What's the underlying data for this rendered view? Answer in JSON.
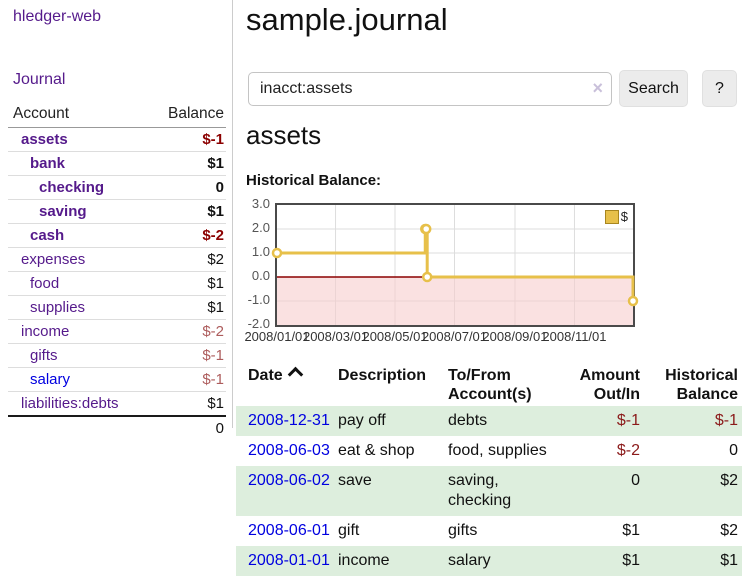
{
  "sidebar": {
    "brand": "hledger-web",
    "nav": {
      "journal": "Journal"
    },
    "accounts_table": {
      "header": {
        "account": "Account",
        "balance": "Balance"
      },
      "rows": [
        {
          "name": "assets",
          "balance": "$-1"
        },
        {
          "name": "bank",
          "balance": "$1"
        },
        {
          "name": "checking",
          "balance": "0"
        },
        {
          "name": "saving",
          "balance": "$1"
        },
        {
          "name": "cash",
          "balance": "$-2"
        },
        {
          "name": "expenses",
          "balance": "$2"
        },
        {
          "name": "food",
          "balance": "$1"
        },
        {
          "name": "supplies",
          "balance": "$1"
        },
        {
          "name": "income",
          "balance": "$-2"
        },
        {
          "name": "gifts",
          "balance": "$-1"
        },
        {
          "name": "salary",
          "balance": "$-1"
        },
        {
          "name": "liabilities:debts",
          "balance": "$1"
        }
      ],
      "total": "0"
    }
  },
  "main": {
    "title": "sample.journal",
    "search": {
      "value": "inacct:assets",
      "placeholder": "",
      "clear_icon": "×",
      "search_button": "Search",
      "help_button": "?"
    },
    "account_heading": "assets",
    "chart_title": "Historical Balance:"
  },
  "chart_data": {
    "type": "line",
    "step": true,
    "title": "Historical Balance:",
    "series": [
      {
        "name": "$",
        "color": "#e7c04a",
        "points": [
          [
            "2008-01-01",
            1
          ],
          [
            "2008-06-01",
            2
          ],
          [
            "2008-06-02",
            2
          ],
          [
            "2008-06-03",
            0
          ],
          [
            "2008-12-31",
            -1
          ]
        ]
      }
    ],
    "x_range": [
      "2008-01-01",
      "2008-12-31"
    ],
    "ylim": [
      -2,
      3
    ],
    "yticks": [
      "3.0",
      "2.0",
      "1.0",
      "0.0",
      "-1.0",
      "-2.0"
    ],
    "xticks": [
      "2008/01/01",
      "2008/03/01",
      "2008/05/01",
      "2008/07/01",
      "2008/09/01",
      "2008/11/01"
    ],
    "grid": true,
    "negative_fill": "#f6cdcd",
    "zero_line_color": "#8b0000",
    "legend": {
      "label": "$",
      "position": "top-right"
    }
  },
  "register": {
    "headers": {
      "date": "Date",
      "description": "Description",
      "account": "To/From Account(s)",
      "amount": "Amount Out/In",
      "balance": "Historical Balance"
    },
    "sort": "ascending",
    "rows": [
      {
        "date": "2008-12-31",
        "description": "pay off",
        "account": "debts",
        "amount": "$-1",
        "balance": "$-1"
      },
      {
        "date": "2008-06-03",
        "description": "eat & shop",
        "account": "food, supplies",
        "amount": "$-2",
        "balance": "0"
      },
      {
        "date": "2008-06-02",
        "description": "save",
        "account": "saving, checking",
        "amount": "0",
        "balance": "$2"
      },
      {
        "date": "2008-06-01",
        "description": "gift",
        "account": "gifts",
        "amount": "$1",
        "balance": "$2"
      },
      {
        "date": "2008-01-01",
        "description": "income",
        "account": "salary",
        "amount": "$1",
        "balance": "$1"
      }
    ]
  },
  "colors": {
    "link_purple": "#551a8b",
    "link_blue": "#0000e0",
    "negative_strong": "#8b0000",
    "negative_muted": "#ad5c5c",
    "negative_table": "#8b1a1a",
    "row_stripe_green": "#ddeedd",
    "series_yellow": "#e7c04a"
  }
}
